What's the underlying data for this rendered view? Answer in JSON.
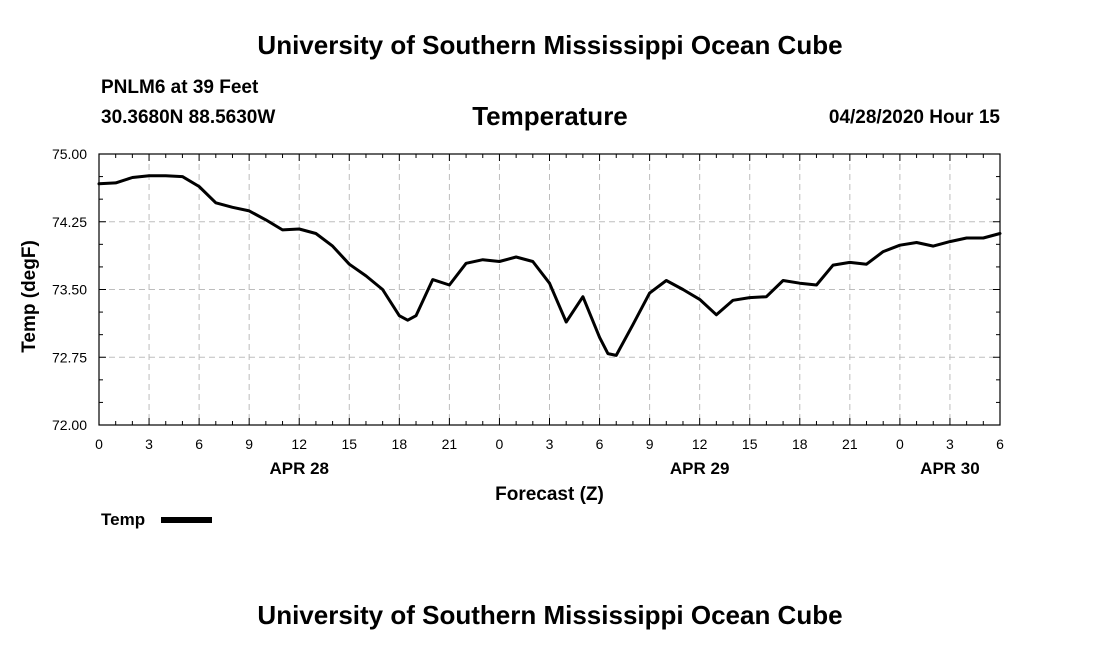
{
  "header": {
    "title": "University of Southern Mississippi Ocean Cube",
    "station": "PNLM6 at 39 Feet",
    "location": "30.3680N 88.5630W",
    "variable": "Temperature",
    "run_time": "04/28/2020 Hour 15"
  },
  "footer": {
    "title": "University of Southern Mississippi Ocean Cube"
  },
  "legend": {
    "label": "Temp",
    "color": "#000000"
  },
  "chart_data": {
    "type": "line",
    "title": "Temperature",
    "xlabel": "Forecast (Z)",
    "ylabel": "Temp (degF)",
    "xlim": [
      0,
      54
    ],
    "ylim": [
      72.0,
      75.0
    ],
    "yticks": [
      "72.00",
      "72.75",
      "73.50",
      "74.25",
      "75.00"
    ],
    "ytick_values": [
      72.0,
      72.75,
      73.5,
      74.25,
      75.0
    ],
    "xticks": [
      0,
      3,
      6,
      9,
      12,
      15,
      18,
      21,
      24,
      27,
      30,
      33,
      36,
      39,
      42,
      45,
      48,
      51,
      54
    ],
    "xtick_labels": [
      "0",
      "3",
      "6",
      "9",
      "12",
      "15",
      "18",
      "21",
      "0",
      "3",
      "6",
      "9",
      "12",
      "15",
      "18",
      "21",
      "0",
      "3",
      "6"
    ],
    "date_labels": [
      {
        "label": "APR 28",
        "x": 12
      },
      {
        "label": "APR 29",
        "x": 36
      },
      {
        "label": "APR 30",
        "x": 51
      }
    ],
    "grid": true,
    "series": [
      {
        "name": "Temp",
        "color": "#000000",
        "x": [
          0,
          1,
          2,
          3,
          4,
          5,
          6,
          7,
          8,
          9,
          10,
          11,
          12,
          13,
          14,
          15,
          16,
          17,
          18,
          18.5,
          19,
          20,
          21,
          22,
          23,
          24,
          25,
          26,
          27,
          28,
          29,
          30,
          30.5,
          31,
          32,
          33,
          34,
          35,
          36,
          37,
          38,
          39,
          40,
          41,
          42,
          43,
          44,
          45,
          46,
          47,
          48,
          49,
          50,
          51,
          52,
          53,
          54
        ],
        "values": [
          74.67,
          74.68,
          74.74,
          74.76,
          74.76,
          74.75,
          74.64,
          74.46,
          74.41,
          74.37,
          74.27,
          74.16,
          74.17,
          74.12,
          73.98,
          73.78,
          73.65,
          73.5,
          73.21,
          73.16,
          73.21,
          73.61,
          73.55,
          73.79,
          73.83,
          73.81,
          73.86,
          73.81,
          73.57,
          73.14,
          73.42,
          72.97,
          72.79,
          72.77,
          73.11,
          73.46,
          73.6,
          73.5,
          73.39,
          73.22,
          73.38,
          73.41,
          73.42,
          73.6,
          73.57,
          73.55,
          73.77,
          73.8,
          73.78,
          73.92,
          73.99,
          74.02,
          73.98,
          74.03,
          74.07,
          74.07,
          74.12
        ]
      }
    ]
  }
}
